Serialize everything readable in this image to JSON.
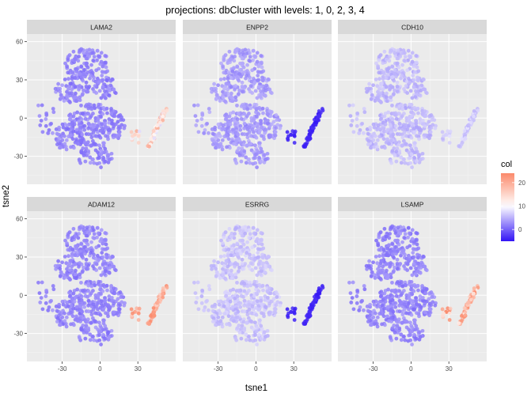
{
  "chart_data": {
    "type": "scatter",
    "title": "projections:  dbCluster with levels: 1, 0, 2, 3, 4",
    "xlabel": "tsne1",
    "ylabel": "tsne2",
    "xlim": [
      -58,
      60
    ],
    "ylim": [
      -52,
      66
    ],
    "x_ticks": [
      -30,
      0,
      30
    ],
    "y_ticks": [
      -30,
      0,
      30,
      60
    ],
    "grid": true,
    "facets": [
      {
        "name": "LAMA2",
        "main_level": 2,
        "island_level": 14,
        "island_spread": 7
      },
      {
        "name": "ENPP2",
        "main_level": 3.5,
        "island_level": -4,
        "island_spread": 0.8
      },
      {
        "name": "CDH10",
        "main_level": 5.5,
        "island_level": 7,
        "island_spread": 2
      },
      {
        "name": "ADAM12",
        "main_level": 2,
        "island_level": 20,
        "island_spread": 6
      },
      {
        "name": "ESRRG",
        "main_level": 6,
        "island_level": -4,
        "island_spread": 0.8
      },
      {
        "name": "LSAMP",
        "main_level": 2,
        "island_level": 19,
        "island_spread": 7
      }
    ],
    "legend": {
      "title": "col",
      "position": "right",
      "ticks": [
        0,
        10,
        20
      ],
      "range": [
        -5,
        24
      ],
      "low_color": "#3214f5",
      "mid_color": "#ffffff",
      "high_color": "#fb8a6b",
      "midpoint": 10
    },
    "colors": {
      "panel_bg": "#ebebeb",
      "strip_bg": "#d9d9d9",
      "grid_major": "#ffffff"
    }
  }
}
